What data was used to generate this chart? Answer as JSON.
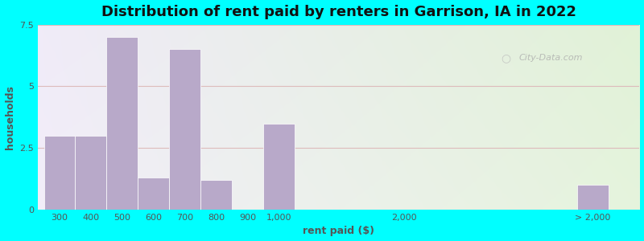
{
  "title": "Distribution of rent paid by renters in Garrison, IA in 2022",
  "xlabel": "rent paid ($)",
  "ylabel": "households",
  "bar_color": "#b8a9c9",
  "background_outer": "#00ffff",
  "ylim": [
    0,
    7.5
  ],
  "yticks": [
    0,
    2.5,
    5,
    7.5
  ],
  "categories": [
    "300",
    "400",
    "500",
    "600",
    "700",
    "800",
    "900",
    "1,000",
    "2,000",
    "> 2,000"
  ],
  "values": [
    3.0,
    3.0,
    7.0,
    1.3,
    6.5,
    1.2,
    0.0,
    3.5,
    0.0,
    1.0
  ],
  "bar_lefts": [
    0,
    1,
    2,
    3,
    4,
    5,
    6,
    7,
    11,
    17
  ],
  "bar_width": 1.0,
  "tick_at_center": [
    0.5,
    1.5,
    2.5,
    3.5,
    4.5,
    5.5,
    6.5,
    7.5,
    11.5,
    17.5
  ],
  "xlim": [
    -0.2,
    19.0
  ],
  "gridcolor": "#ddbbbb",
  "title_fontsize": 13,
  "label_fontsize": 9,
  "tick_fontsize": 8,
  "watermark": "City-Data.com"
}
